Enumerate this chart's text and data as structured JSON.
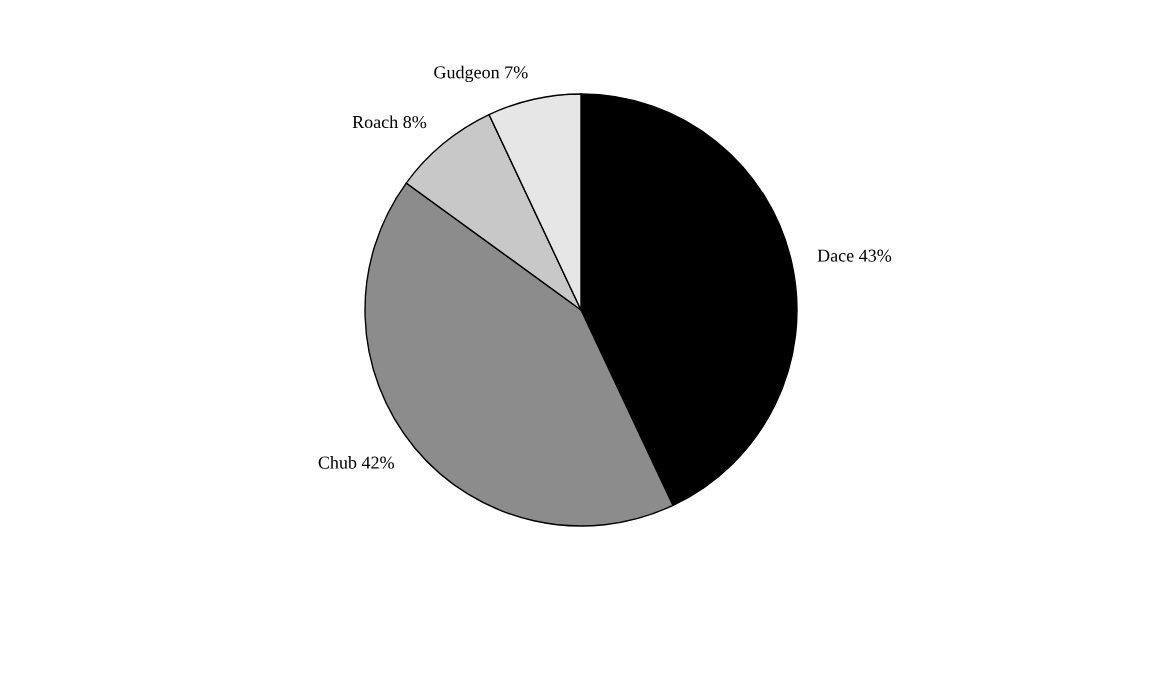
{
  "chart_data": {
    "type": "pie",
    "categories": [
      "Dace",
      "Chub",
      "Roach",
      "Gudgeon"
    ],
    "values": [
      43,
      42,
      8,
      7
    ],
    "value_labels": [
      "43%",
      "42%",
      "8%",
      "7%"
    ],
    "colors": [
      "#000000",
      "#8c8c8c",
      "#c8c8c8",
      "#e6e6e6"
    ],
    "legend": false
  }
}
